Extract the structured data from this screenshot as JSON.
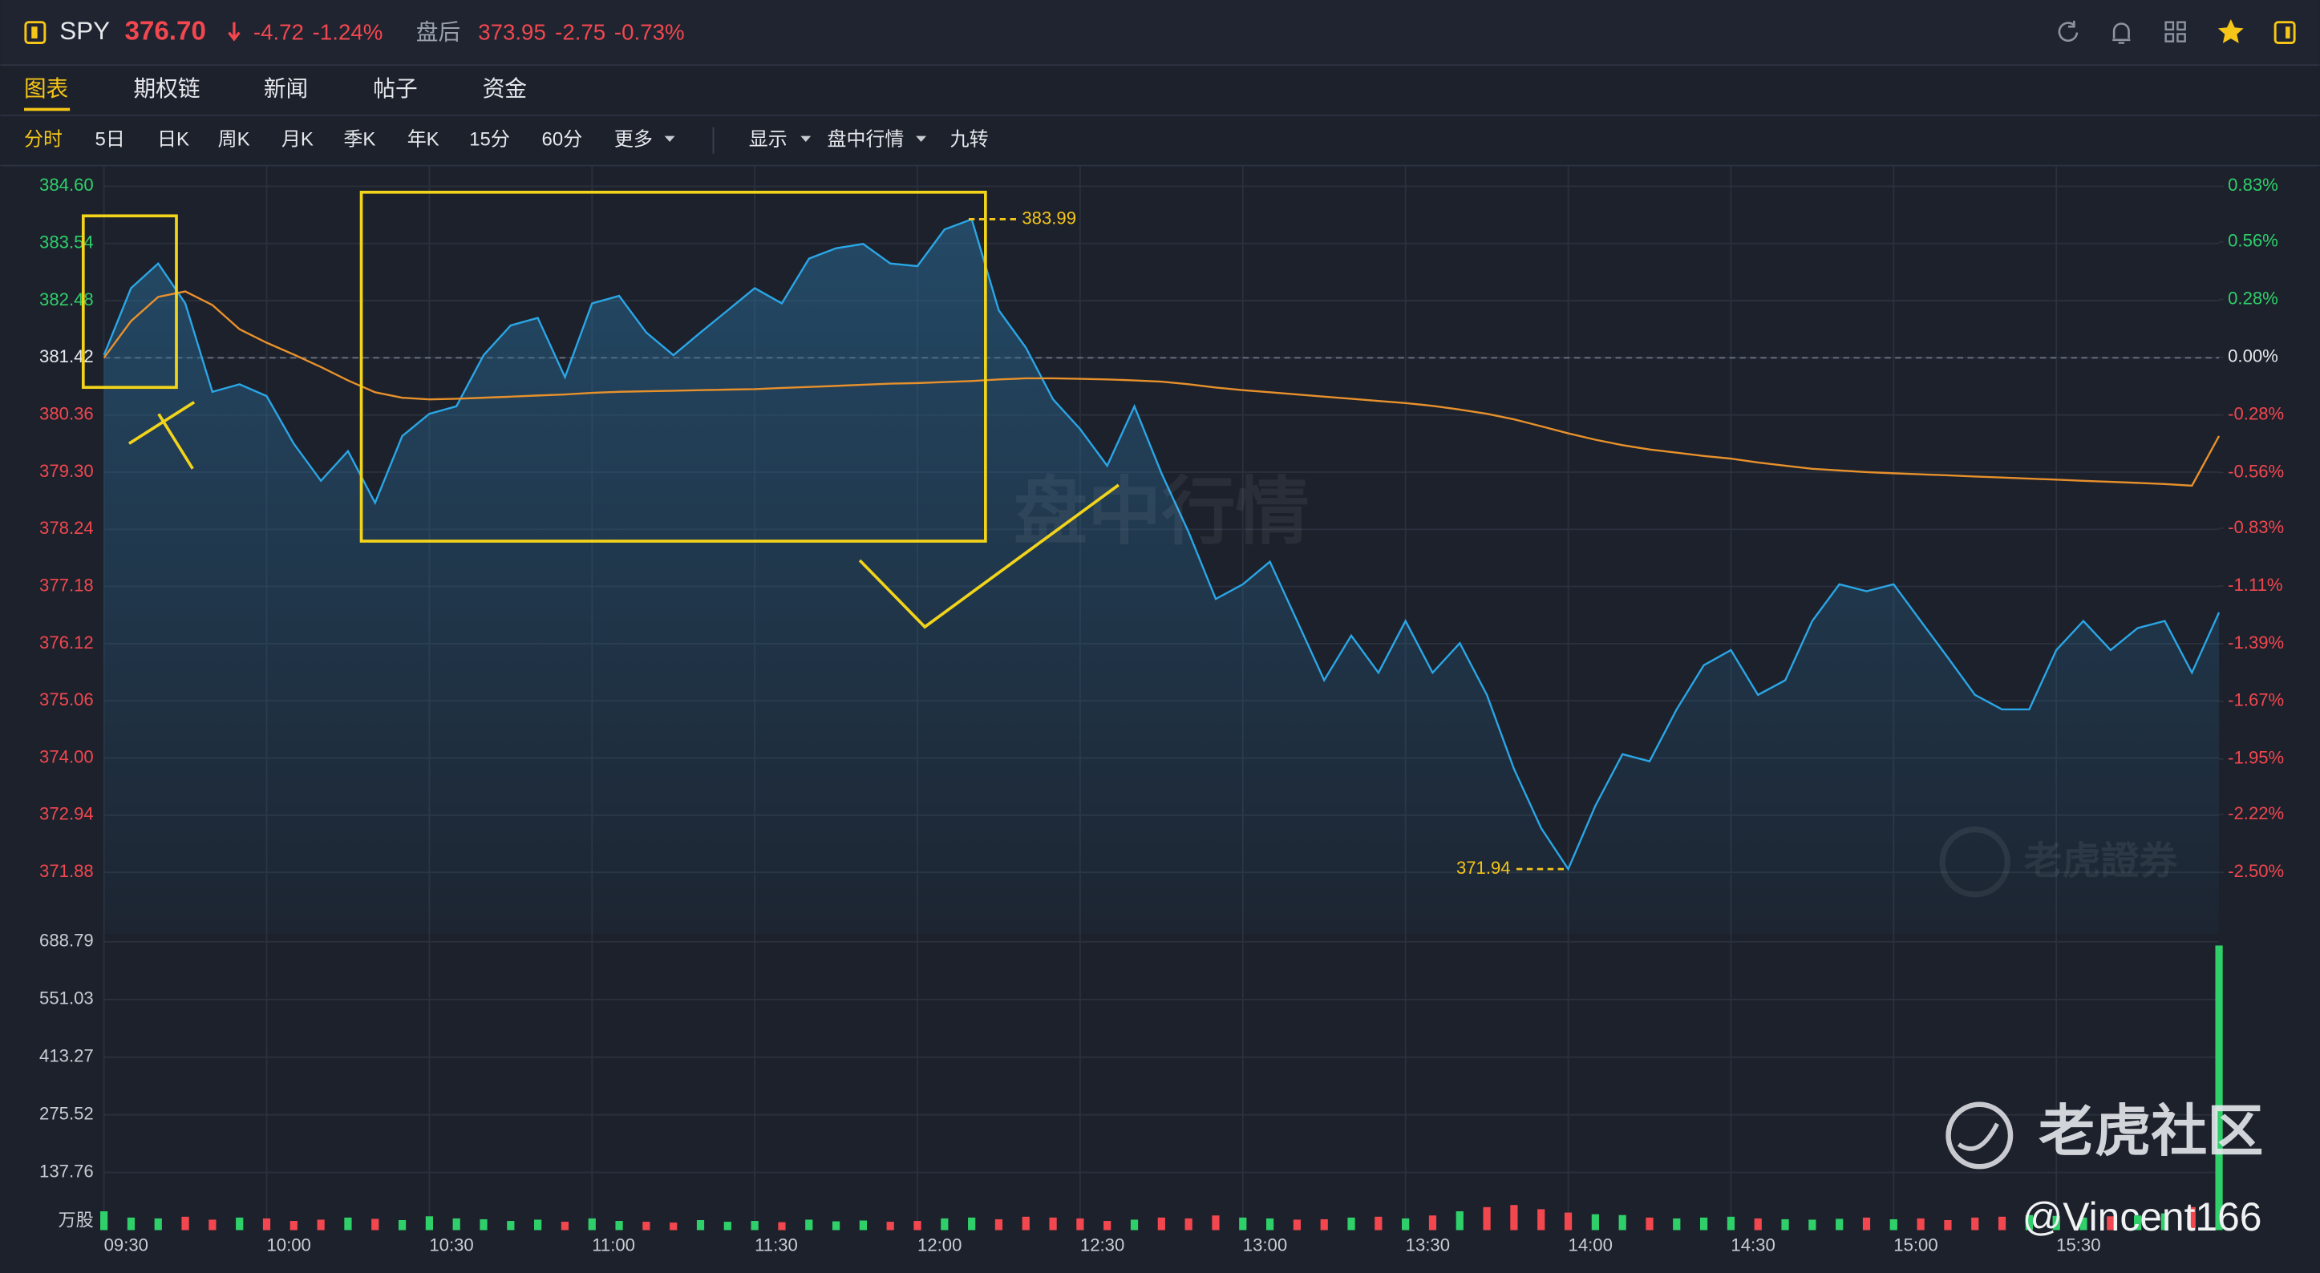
{
  "header": {
    "symbol": "SPY",
    "price": "376.70",
    "change": "-4.72",
    "change_pct": "-1.24%",
    "after_hours_label": "盘后",
    "after_hours_price": "373.95",
    "after_hours_change": "-2.75",
    "after_hours_pct": "-0.73%"
  },
  "tabs": [
    "图表",
    "期权链",
    "新闻",
    "帖子",
    "资金"
  ],
  "toolbar": {
    "periods": [
      "分时",
      "5日",
      "日K",
      "周K",
      "月K",
      "季K",
      "年K",
      "15分",
      "60分",
      "更多"
    ],
    "menus": [
      "显示",
      "盘中行情",
      "九转"
    ]
  },
  "watermarks": {
    "mode": "盘中行情",
    "broker": "老虎證券",
    "community": "老虎社区",
    "author": "@Vincent166"
  },
  "chart_data": [
    {
      "type": "line",
      "x": [
        "09:30",
        "09:35",
        "09:40",
        "09:45",
        "09:50",
        "09:55",
        "10:00",
        "10:05",
        "10:10",
        "10:15",
        "10:20",
        "10:25",
        "10:30",
        "10:35",
        "10:40",
        "10:45",
        "10:50",
        "10:55",
        "11:00",
        "11:05",
        "11:10",
        "11:15",
        "11:20",
        "11:25",
        "11:30",
        "11:35",
        "11:40",
        "11:45",
        "11:50",
        "11:55",
        "12:00",
        "12:05",
        "12:10",
        "12:15",
        "12:20",
        "12:25",
        "12:30",
        "12:35",
        "12:40",
        "12:45",
        "12:50",
        "12:55",
        "13:00",
        "13:05",
        "13:10",
        "13:15",
        "13:20",
        "13:25",
        "13:30",
        "13:35",
        "13:40",
        "13:45",
        "13:50",
        "13:55",
        "14:00",
        "14:05",
        "14:10",
        "14:15",
        "14:20",
        "14:25",
        "14:30",
        "14:35",
        "14:40",
        "14:45",
        "14:50",
        "14:55",
        "15:00",
        "15:05",
        "15:10",
        "15:15",
        "15:20",
        "15:25",
        "15:30",
        "15:35",
        "15:40",
        "15:45",
        "15:50",
        "15:55",
        "16:00"
      ],
      "series": [
        {
          "color": "#2aa6e6",
          "values": [
            381.47,
            382.71,
            383.17,
            382.43,
            380.79,
            380.93,
            380.71,
            379.83,
            379.14,
            379.69,
            378.73,
            379.97,
            380.38,
            380.52,
            381.47,
            382.02,
            382.16,
            381.06,
            382.43,
            382.57,
            381.89,
            381.47,
            381.89,
            382.3,
            382.71,
            382.43,
            383.26,
            383.45,
            383.53,
            383.17,
            383.12,
            383.8,
            383.99,
            382.3,
            381.61,
            380.65,
            380.1,
            379.42,
            380.52,
            379.28,
            378.19,
            376.95,
            377.22,
            377.64,
            376.54,
            375.44,
            376.27,
            375.58,
            376.54,
            375.58,
            376.13,
            375.17,
            373.8,
            372.7,
            371.94,
            373.11,
            374.07,
            373.94,
            374.9,
            375.72,
            376.0,
            375.17,
            375.44,
            376.54,
            377.22,
            377.09,
            377.22,
            376.54,
            375.86,
            375.17,
            374.9,
            374.9,
            376.0,
            376.54,
            376.0,
            376.41,
            376.54,
            375.58,
            376.7
          ]
        },
        {
          "color": "#e8912b",
          "values": [
            381.42,
            382.1,
            382.55,
            382.65,
            382.4,
            381.95,
            381.7,
            381.48,
            381.25,
            381.0,
            380.78,
            380.68,
            380.65,
            380.66,
            380.68,
            380.7,
            380.72,
            380.74,
            380.77,
            380.79,
            380.8,
            380.81,
            380.82,
            380.83,
            380.84,
            380.86,
            380.88,
            380.9,
            380.92,
            380.94,
            380.95,
            380.97,
            380.99,
            381.02,
            381.04,
            381.04,
            381.03,
            381.02,
            381.0,
            380.98,
            380.93,
            380.87,
            380.82,
            380.78,
            380.74,
            380.7,
            380.66,
            380.62,
            380.58,
            380.53,
            380.46,
            380.38,
            380.28,
            380.15,
            380.02,
            379.9,
            379.8,
            379.72,
            379.66,
            379.6,
            379.55,
            379.48,
            379.42,
            379.36,
            379.33,
            379.3,
            379.28,
            379.26,
            379.24,
            379.22,
            379.2,
            379.18,
            379.16,
            379.14,
            379.12,
            379.1,
            379.08,
            379.05,
            379.97
          ]
        }
      ],
      "baseline": 381.42,
      "up_color": "#2fcf6a",
      "down_color": "#f2474e",
      "ylim": [
        371.88,
        384.6
      ],
      "yticks": [
        {
          "value": 384.6,
          "label": "384.60"
        },
        383.54,
        382.48,
        381.42,
        380.36,
        {
          "value": 379.3,
          "label": "379.30"
        },
        378.24,
        377.18,
        376.12,
        375.06,
        {
          "value": 374.0,
          "label": "374.00"
        },
        372.94,
        371.88
      ],
      "y2lim": [
        -2.5,
        0.83
      ],
      "y2ticks": [
        {
          "value": 0.83,
          "label": "0.83%"
        },
        {
          "value": 0.56,
          "label": "0.56%"
        },
        {
          "value": 0.28,
          "label": "0.28%"
        },
        {
          "value": 0,
          "label": "0.00%"
        },
        {
          "value": -0.28,
          "label": "-0.28%"
        },
        {
          "value": -0.56,
          "label": "-0.56%"
        },
        {
          "value": -0.83,
          "label": "-0.83%"
        },
        {
          "value": -1.11,
          "label": "-1.11%"
        },
        {
          "value": -1.39,
          "label": "-1.39%"
        },
        {
          "value": -1.67,
          "label": "-1.67%"
        },
        {
          "value": -1.95,
          "label": "-1.95%"
        },
        {
          "value": -2.22,
          "label": "-2.22%"
        },
        {
          "value": -2.5,
          "label": "-2.50%"
        }
      ],
      "xticks": [
        "09:30",
        "10:00",
        "10:30",
        "11:00",
        "11:30",
        "12:00",
        "12:30",
        "13:00",
        "13:30",
        "14:00",
        "14:30",
        "15:00",
        "15:30"
      ],
      "grid": true
    },
    {
      "type": "bar",
      "x": [
        "09:30",
        "09:35",
        "09:40",
        "09:45",
        "09:50",
        "09:55",
        "10:00",
        "10:05",
        "10:10",
        "10:15",
        "10:20",
        "10:25",
        "10:30",
        "10:35",
        "10:40",
        "10:45",
        "10:50",
        "10:55",
        "11:00",
        "11:05",
        "11:10",
        "11:15",
        "11:20",
        "11:25",
        "11:30",
        "11:35",
        "11:40",
        "11:45",
        "11:50",
        "11:55",
        "12:00",
        "12:05",
        "12:10",
        "12:15",
        "12:20",
        "12:25",
        "12:30",
        "12:35",
        "12:40",
        "12:45",
        "12:50",
        "12:55",
        "13:00",
        "13:05",
        "13:10",
        "13:15",
        "13:20",
        "13:25",
        "13:30",
        "13:35",
        "13:40",
        "13:45",
        "13:50",
        "13:55",
        "14:00",
        "14:05",
        "14:10",
        "14:15",
        "14:20",
        "14:25",
        "14:30",
        "14:35",
        "14:40",
        "14:45",
        "14:50",
        "14:55",
        "15:00",
        "15:05",
        "15:10",
        "15:15",
        "15:20",
        "15:25",
        "15:30",
        "15:35",
        "15:40",
        "15:45",
        "15:50",
        "15:55",
        "16:00"
      ],
      "values": [
        45,
        30,
        28,
        32,
        25,
        30,
        28,
        22,
        25,
        30,
        27,
        24,
        33,
        28,
        26,
        22,
        25,
        20,
        28,
        22,
        20,
        18,
        24,
        20,
        22,
        19,
        25,
        21,
        23,
        20,
        22,
        28,
        30,
        26,
        32,
        30,
        28,
        22,
        25,
        30,
        28,
        35,
        30,
        28,
        25,
        26,
        30,
        32,
        28,
        35,
        45,
        55,
        60,
        50,
        42,
        38,
        36,
        30,
        28,
        30,
        32,
        28,
        26,
        25,
        27,
        30,
        26,
        28,
        24,
        30,
        32,
        36,
        34,
        30,
        33,
        35,
        40,
        55,
        680
      ],
      "unit": "万股",
      "ylim": [
        0,
        688.79
      ],
      "yticks": [
        137.76,
        275.52,
        413.27,
        551.03,
        688.79
      ],
      "grid": true
    }
  ]
}
